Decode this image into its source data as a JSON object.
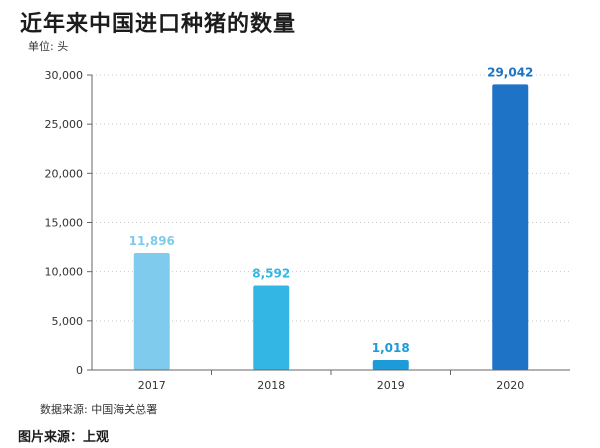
{
  "chart_data": {
    "type": "bar",
    "title": "近年来中国进口种猪的数量",
    "unit_label": "单位: 头",
    "categories": [
      "2017",
      "2018",
      "2019",
      "2020"
    ],
    "values": [
      11896,
      8592,
      1018,
      29042
    ],
    "value_labels": [
      "11,896",
      "8,592",
      "1,018",
      "29,042"
    ],
    "bar_colors": [
      "#7ecbee",
      "#33b6e3",
      "#1d9ad8",
      "#1f73c7"
    ],
    "ylim": [
      0,
      30000
    ],
    "yticks": [
      0,
      5000,
      10000,
      15000,
      20000,
      25000,
      30000
    ],
    "ytick_labels": [
      "0",
      "5,000",
      "10,000",
      "15,000",
      "20,000",
      "25,000",
      "30,000"
    ],
    "grid": true,
    "xlabel": "",
    "ylabel": ""
  },
  "footer": {
    "source": "数据来源: 中国海关总署",
    "credit": "图片来源：上观"
  }
}
